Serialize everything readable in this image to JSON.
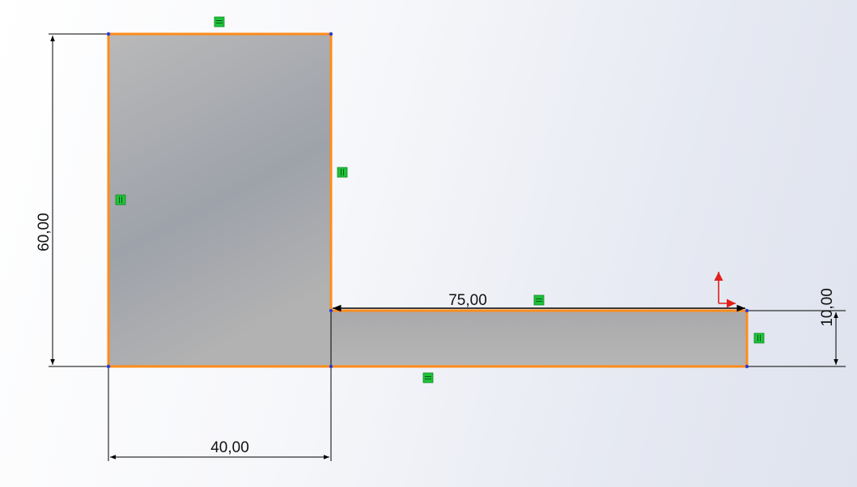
{
  "sketch": {
    "dimensions": {
      "height_left": "60,00",
      "flange_length": "75,00",
      "flange_thickness": "10,00",
      "web_width": "40,00"
    },
    "colors": {
      "profile_edge": "#ff8c1a",
      "fill_light": "#b8b8b8",
      "fill_dark": "#9a9ea6",
      "relation_marker": "#1fc23a",
      "dimension_line": "#000000",
      "origin_axis": "#e0201a",
      "vertex": "#2b3bd6"
    },
    "relations": [
      "horizontal-relation-icon",
      "vertical-relation-icon"
    ]
  }
}
